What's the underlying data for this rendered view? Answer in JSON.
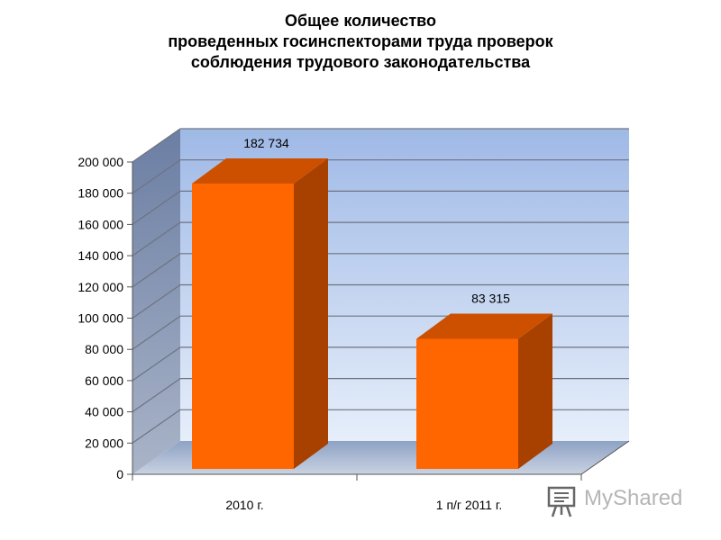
{
  "title_lines": [
    "Общее количество",
    "проведенных госинспекторами труда проверок",
    "соблюдения трудового законодательства"
  ],
  "chart_data": {
    "type": "bar",
    "style": "3d",
    "categories": [
      "2010 г.",
      "1 п/г 2011 г."
    ],
    "values": [
      182734,
      83315
    ],
    "data_labels": [
      "182 734",
      "83 315"
    ],
    "ylim": [
      0,
      200000
    ],
    "yticks": [
      0,
      20000,
      40000,
      60000,
      80000,
      100000,
      120000,
      140000,
      160000,
      180000,
      200000
    ],
    "ytick_labels": [
      "0",
      "20 000",
      "40 000",
      "60 000",
      "80 000",
      "100 000",
      "120 000",
      "140 000",
      "160 000",
      "180 000",
      "200 000"
    ],
    "grid": true,
    "legend": "none",
    "colors": {
      "bar_front": "#ff6600",
      "bar_top": "#cc5000",
      "bar_side": "#a84000",
      "wall_top": "#9fb9e6",
      "wall_bottom": "#e6eefa",
      "side_wall": "#7f8fae",
      "floor": "#aeb8cc"
    }
  },
  "watermark": {
    "text": "MyShared",
    "icon": "presentation-board-icon"
  }
}
